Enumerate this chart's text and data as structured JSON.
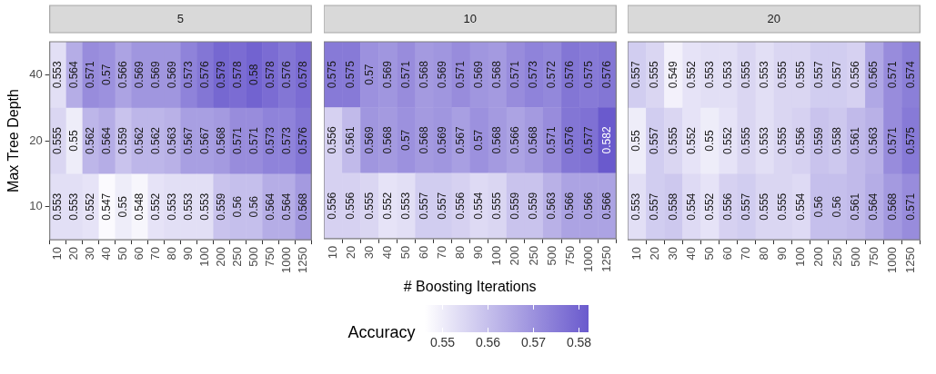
{
  "chart_data": [
    {
      "type": "heatmap",
      "title": "5",
      "ylabel": "Max Tree Depth",
      "categories": [
        "10",
        "20",
        "30",
        "40",
        "50",
        "60",
        "70",
        "80",
        "90",
        "100",
        "200",
        "250",
        "500",
        "750",
        "1000",
        "1250"
      ],
      "y_categories": [
        "40",
        "20",
        "10"
      ],
      "cells": [
        [
          0.553,
          0.564,
          0.571,
          0.57,
          0.566,
          0.569,
          0.569,
          0.569,
          0.573,
          0.576,
          0.579,
          0.578,
          0.58,
          0.578,
          0.576,
          0.578
        ],
        [
          0.555,
          0.55,
          0.562,
          0.564,
          0.559,
          0.562,
          0.562,
          0.563,
          0.567,
          0.567,
          0.568,
          0.571,
          0.571,
          0.573,
          0.573,
          0.576
        ],
        [
          0.553,
          0.553,
          0.552,
          0.547,
          0.55,
          0.548,
          0.552,
          0.553,
          0.553,
          0.553,
          0.559,
          0.56,
          0.56,
          0.564,
          0.564,
          0.568
        ]
      ],
      "color": "#6a5acd",
      "data_labels": true
    },
    {
      "type": "heatmap",
      "title": "10",
      "xlabel": "# Boosting Iterations",
      "clabel": "Accuracy",
      "categories": [
        "10",
        "20",
        "30",
        "40",
        "50",
        "60",
        "70",
        "80",
        "90",
        "100",
        "200",
        "250",
        "500",
        "750",
        "1000",
        "1250"
      ],
      "y_categories": [
        "40",
        "20",
        "10"
      ],
      "cells": [
        [
          0.575,
          0.575,
          0.57,
          0.569,
          0.571,
          0.568,
          0.569,
          0.571,
          0.569,
          0.568,
          0.571,
          0.573,
          0.572,
          0.576,
          0.575,
          0.576
        ],
        [
          0.556,
          0.561,
          0.569,
          0.568,
          0.57,
          0.568,
          0.569,
          0.567,
          0.57,
          0.568,
          0.566,
          0.568,
          0.571,
          0.576,
          0.577,
          0.582
        ],
        [
          0.556,
          0.556,
          0.555,
          0.552,
          0.553,
          0.557,
          0.557,
          0.556,
          0.554,
          0.555,
          0.559,
          0.559,
          0.563,
          0.566,
          0.566,
          0.566
        ]
      ],
      "clim": [
        0.546,
        0.582
      ],
      "cticks": [
        0.55,
        0.56,
        0.57,
        0.58
      ],
      "color": "#6a5acd",
      "data_labels": true,
      "tick_labels": "x"
    },
    {
      "type": "heatmap",
      "title": "20",
      "categories": [
        "10",
        "20",
        "30",
        "40",
        "50",
        "60",
        "70",
        "80",
        "90",
        "100",
        "200",
        "250",
        "500",
        "750",
        "1000",
        "1250"
      ],
      "y_categories": [
        "40",
        "20",
        "10"
      ],
      "cells": [
        [
          0.557,
          0.555,
          0.549,
          0.552,
          0.553,
          0.553,
          0.555,
          0.553,
          0.555,
          0.555,
          0.557,
          0.557,
          0.556,
          0.565,
          0.571,
          0.574
        ],
        [
          0.55,
          0.557,
          0.555,
          0.552,
          0.55,
          0.552,
          0.555,
          0.553,
          0.555,
          0.556,
          0.559,
          0.558,
          0.561,
          0.563,
          0.571,
          0.575
        ],
        [
          0.553,
          0.557,
          0.558,
          0.554,
          0.552,
          0.556,
          0.557,
          0.555,
          0.555,
          0.554,
          0.56,
          0.56,
          0.561,
          0.564,
          0.568,
          0.571
        ]
      ],
      "color": "#6a5acd",
      "data_labels": true,
      "tick_labels": "x"
    }
  ]
}
